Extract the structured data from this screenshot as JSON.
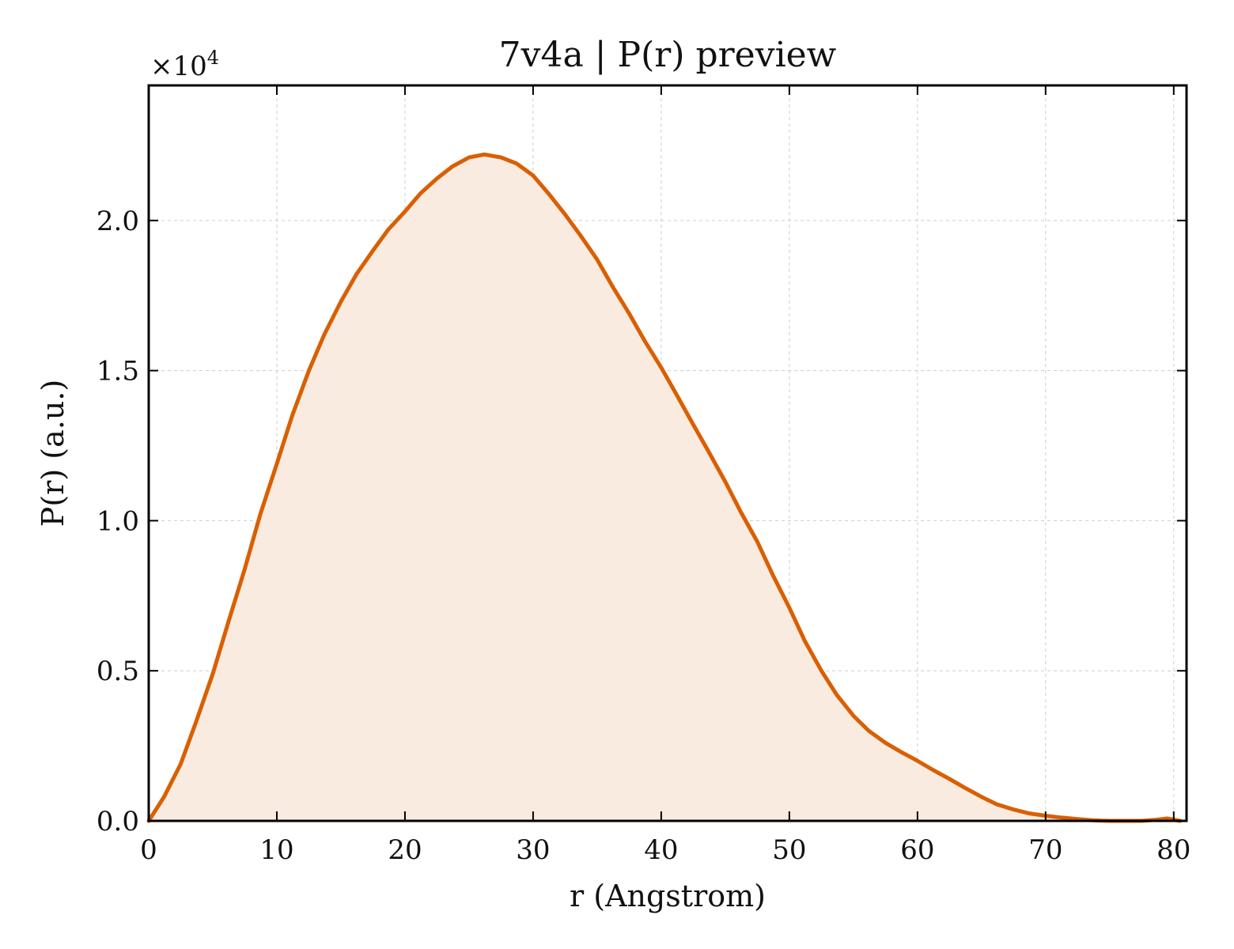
{
  "chart_data": {
    "type": "area",
    "title": "7v4a | P(r) preview",
    "xlabel": "r (Angstrom)",
    "ylabel": "P(r) (a.u.)",
    "y_multiplier": "×10",
    "y_exponent": "4",
    "xlim": [
      0,
      81
    ],
    "ylim": [
      0,
      24500
    ],
    "x_ticks": [
      0,
      10,
      20,
      30,
      40,
      50,
      60,
      70,
      80
    ],
    "x_tick_labels": [
      "0",
      "10",
      "20",
      "30",
      "40",
      "50",
      "60",
      "70",
      "80"
    ],
    "y_ticks": [
      0,
      5000,
      10000,
      15000,
      20000
    ],
    "y_tick_labels": [
      "0.0",
      "0.5",
      "1.0",
      "1.5",
      "2.0"
    ],
    "grid": true,
    "line_color": "#d95f02",
    "fill_color": "#f9ebe0",
    "series": [
      {
        "x": [
          0,
          1.2,
          2.5,
          3.7,
          5,
          6.2,
          7.5,
          8.7,
          10,
          11.2,
          12.5,
          13.7,
          15,
          16.2,
          17.5,
          18.7,
          20,
          21.2,
          22.5,
          23.7,
          25,
          26.2,
          27.5,
          28.7,
          30,
          31.2,
          32.5,
          33.7,
          35,
          36.2,
          37.5,
          38.7,
          40,
          41.2,
          42.5,
          43.7,
          45,
          46.2,
          47.5,
          48.7,
          50,
          51.2,
          52.5,
          53.7,
          55,
          56.2,
          57.5,
          58.7,
          60,
          61.2,
          62.5,
          63.7,
          65,
          66.2,
          67.5,
          68.7,
          70,
          71.2,
          72.5,
          73.7,
          75,
          76.2,
          77.5,
          78.7,
          79.5,
          80.5
        ],
        "y": [
          0,
          800,
          1900,
          3300,
          4900,
          6600,
          8400,
          10200,
          11900,
          13500,
          15000,
          16200,
          17300,
          18200,
          19000,
          19700,
          20300,
          20900,
          21400,
          21800,
          22100,
          22200,
          22100,
          21900,
          21500,
          20900,
          20200,
          19500,
          18700,
          17800,
          16900,
          16000,
          15100,
          14200,
          13200,
          12300,
          11300,
          10300,
          9300,
          8200,
          7100,
          6000,
          5000,
          4200,
          3500,
          3000,
          2600,
          2300,
          2000,
          1700,
          1400,
          1100,
          800,
          550,
          380,
          250,
          170,
          110,
          60,
          20,
          0,
          0,
          0,
          40,
          80,
          0
        ]
      }
    ]
  }
}
